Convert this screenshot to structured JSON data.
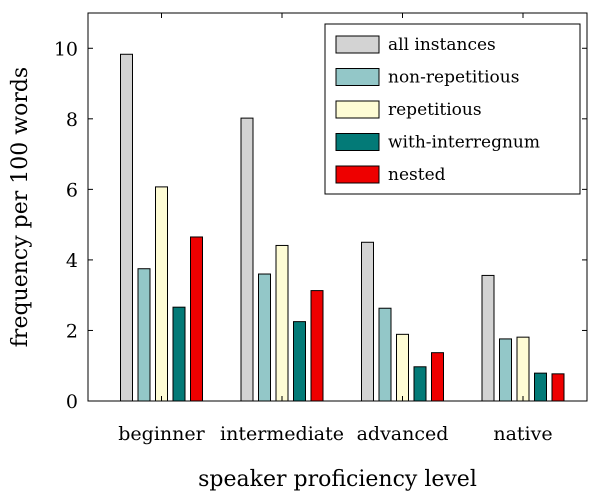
{
  "chart_data": {
    "type": "bar",
    "xlabel": "speaker proficiency level",
    "ylabel": "frequency per 100 words",
    "ylim": [
      0,
      11
    ],
    "yticks": [
      0,
      2,
      4,
      6,
      8,
      10
    ],
    "categories": [
      "beginner",
      "intermediate",
      "advanced",
      "native"
    ],
    "legend_position": "top-right",
    "grid": false,
    "series": [
      {
        "name": "all instances",
        "color": "#d3d3d3",
        "values": [
          9.83,
          8.02,
          4.5,
          3.56
        ]
      },
      {
        "name": "non-repetitious",
        "color": "#93c7c8",
        "values": [
          3.75,
          3.6,
          2.63,
          1.76
        ]
      },
      {
        "name": "repetitious",
        "color": "#fefcd5",
        "values": [
          6.07,
          4.41,
          1.89,
          1.81
        ]
      },
      {
        "name": "with-interregnum",
        "color": "#037a77",
        "values": [
          2.66,
          2.25,
          0.97,
          0.79
        ]
      },
      {
        "name": "nested",
        "color": "#ee0000",
        "values": [
          4.65,
          3.13,
          1.37,
          0.77
        ]
      }
    ]
  }
}
